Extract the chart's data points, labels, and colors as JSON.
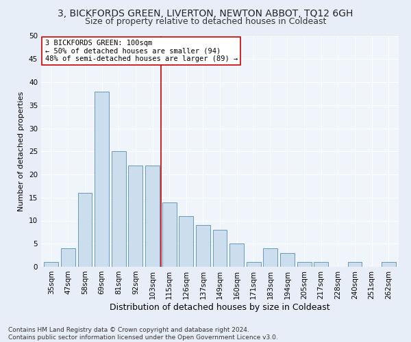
{
  "title1": "3, BICKFORDS GREEN, LIVERTON, NEWTON ABBOT, TQ12 6GH",
  "title2": "Size of property relative to detached houses in Coldeast",
  "xlabel": "Distribution of detached houses by size in Coldeast",
  "ylabel": "Number of detached properties",
  "categories": [
    "35sqm",
    "47sqm",
    "58sqm",
    "69sqm",
    "81sqm",
    "92sqm",
    "103sqm",
    "115sqm",
    "126sqm",
    "137sqm",
    "149sqm",
    "160sqm",
    "171sqm",
    "183sqm",
    "194sqm",
    "205sqm",
    "217sqm",
    "228sqm",
    "240sqm",
    "251sqm",
    "262sqm"
  ],
  "values": [
    1,
    4,
    16,
    38,
    25,
    22,
    22,
    14,
    11,
    9,
    8,
    5,
    1,
    4,
    3,
    1,
    1,
    0,
    1,
    0,
    1
  ],
  "bar_color": "#ccdded",
  "bar_edge_color": "#6699bb",
  "vline_x": 6.5,
  "vline_color": "#cc0000",
  "annotation_text": "3 BICKFORDS GREEN: 100sqm\n← 50% of detached houses are smaller (94)\n48% of semi-detached houses are larger (89) →",
  "annotation_box_color": "#ffffff",
  "annotation_box_edge": "#cc0000",
  "ylim": [
    0,
    50
  ],
  "yticks": [
    0,
    5,
    10,
    15,
    20,
    25,
    30,
    35,
    40,
    45,
    50
  ],
  "footer": "Contains HM Land Registry data © Crown copyright and database right 2024.\nContains public sector information licensed under the Open Government Licence v3.0.",
  "bg_color": "#e8eef8",
  "plot_bg_color": "#f0f4fb",
  "grid_color": "#ffffff",
  "title1_fontsize": 10,
  "title2_fontsize": 9,
  "xlabel_fontsize": 9,
  "ylabel_fontsize": 8,
  "tick_fontsize": 7.5,
  "annotation_fontsize": 7.5,
  "footer_fontsize": 6.5
}
